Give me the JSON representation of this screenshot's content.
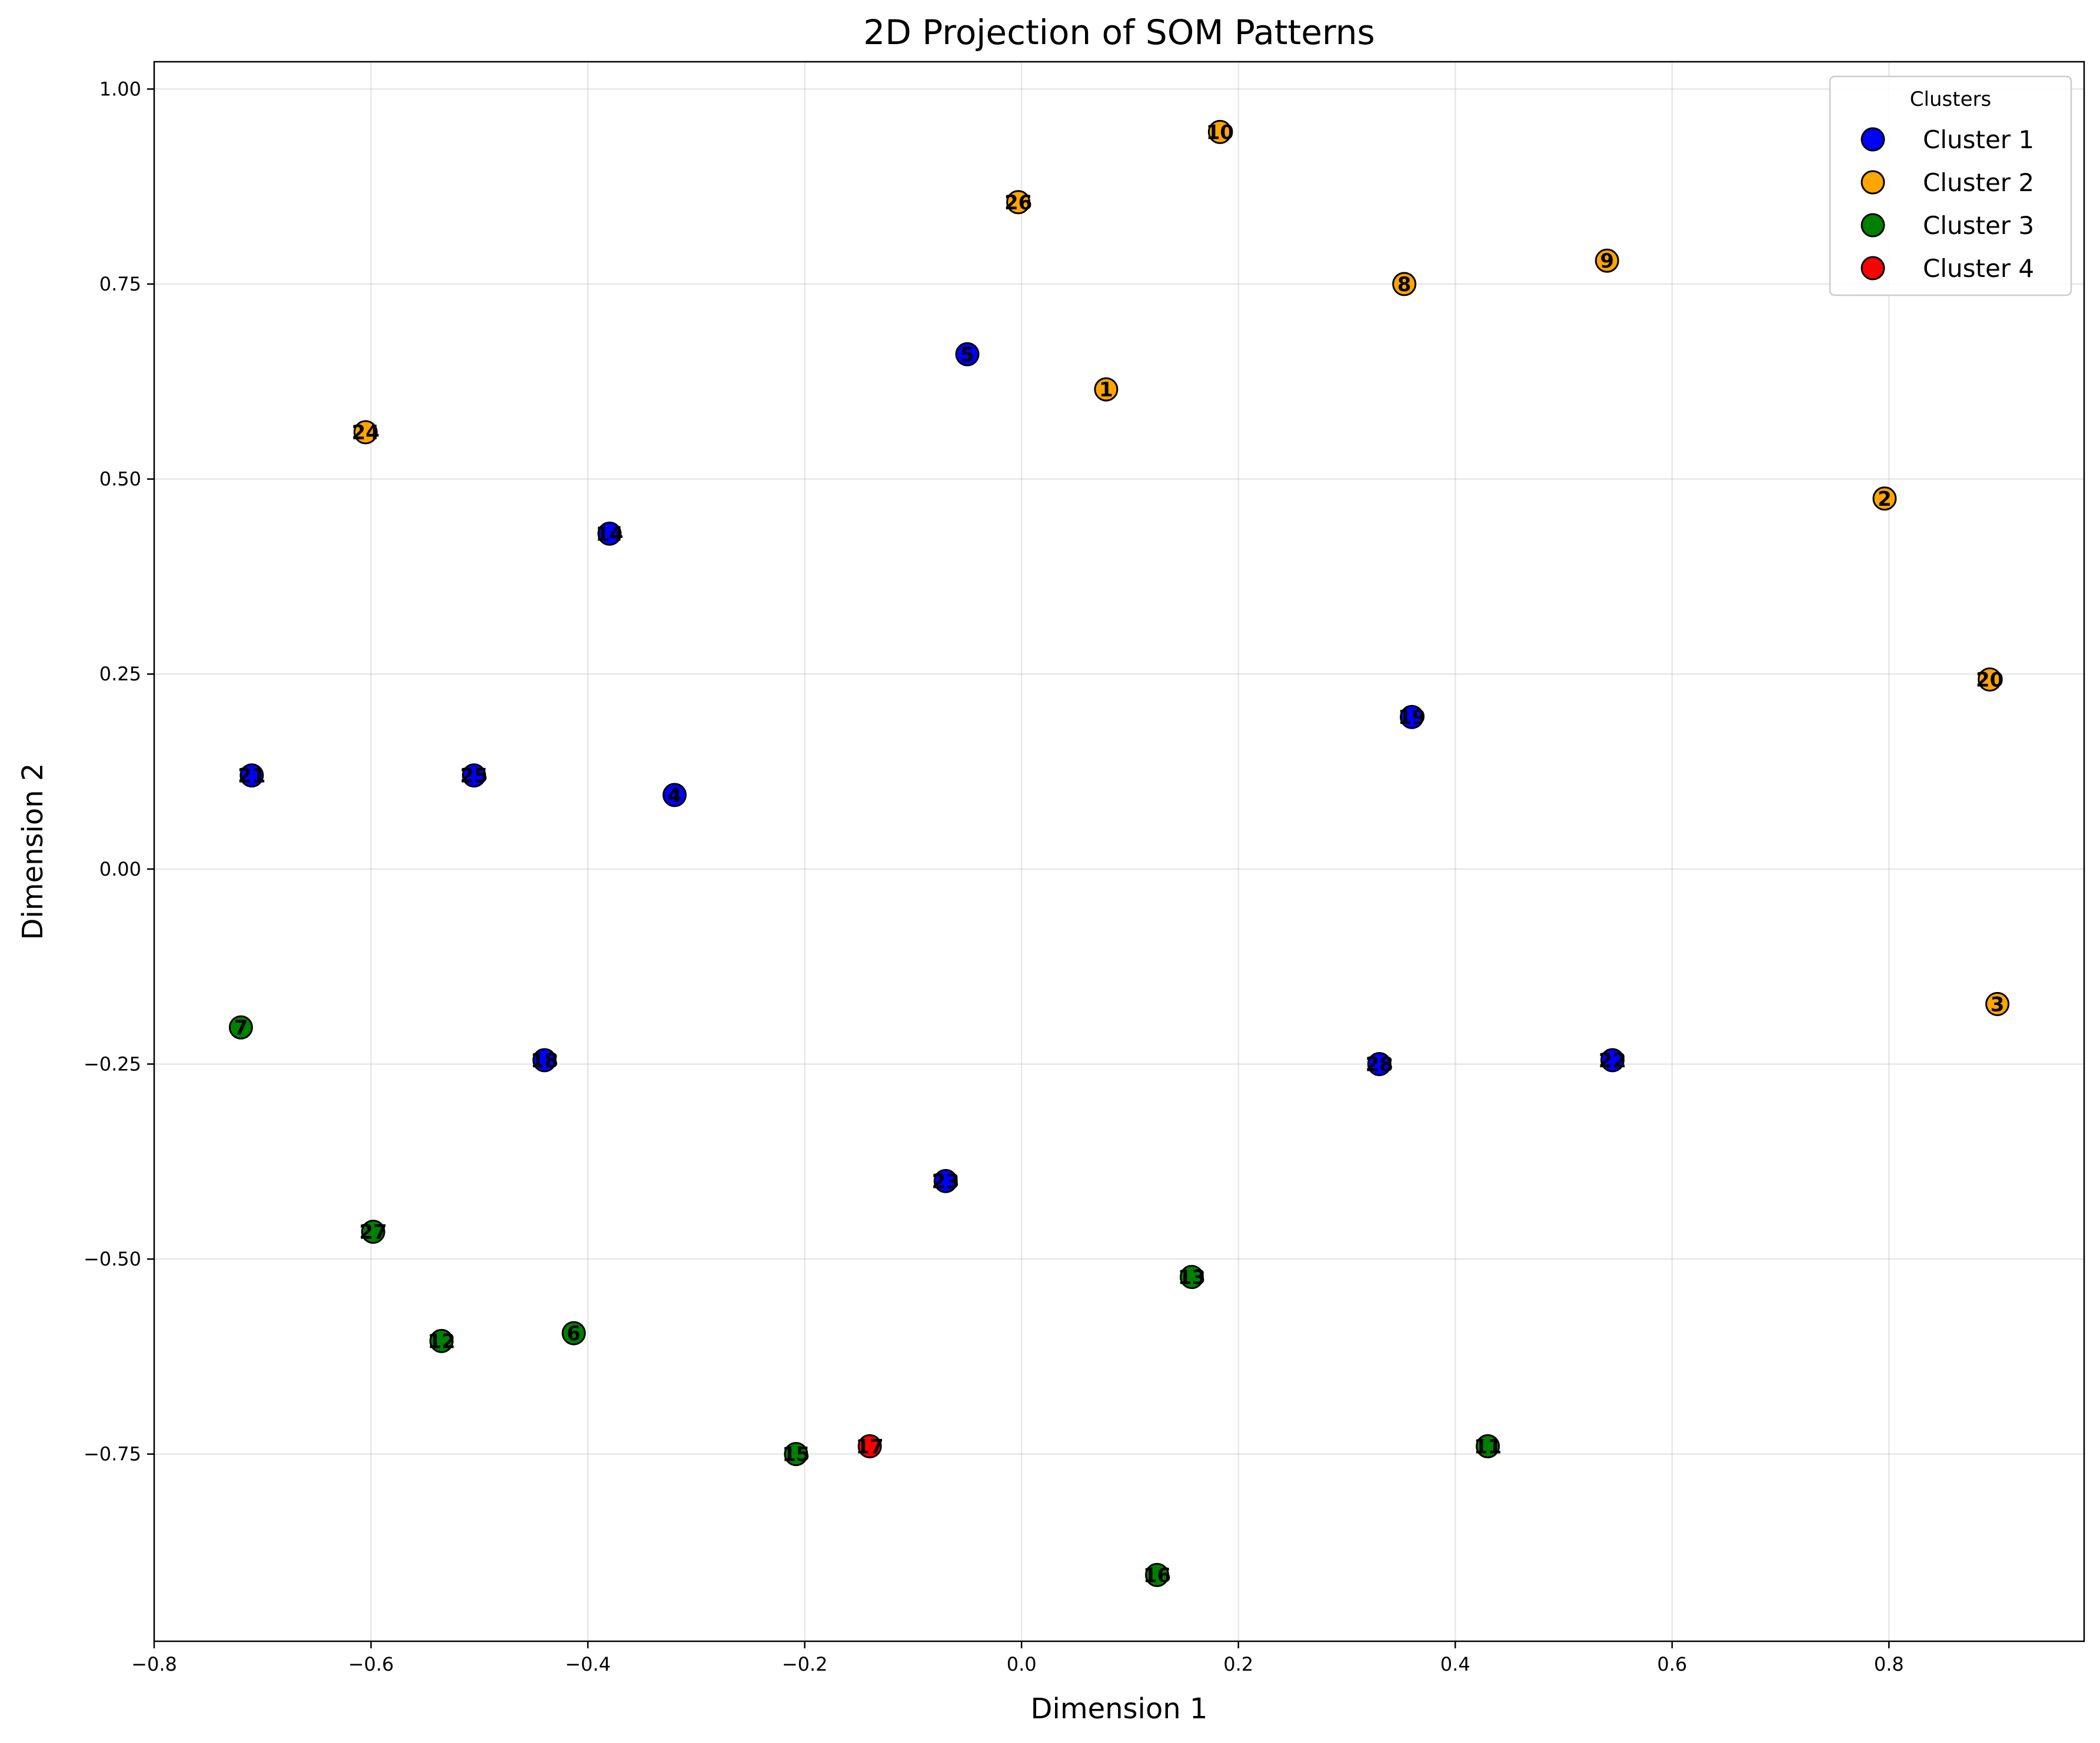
{
  "chart_data": {
    "type": "scatter",
    "title": "2D Projection of SOM Patterns",
    "xlabel": "Dimension 1",
    "ylabel": "Dimension 2",
    "xlim": [
      -0.8,
      0.98
    ],
    "ylim": [
      -0.99,
      1.035
    ],
    "grid": true,
    "xticks": [
      -0.8,
      -0.6,
      -0.4,
      -0.2,
      0.0,
      0.2,
      0.4,
      0.6,
      0.8
    ],
    "yticks": [
      1.0,
      0.75,
      0.5,
      0.25,
      0.0,
      -0.25,
      -0.5,
      -0.75
    ],
    "xtick_labels": [
      "−0.8",
      "−0.6",
      "−0.4",
      "−0.2",
      "0.0",
      "0.2",
      "0.4",
      "0.6",
      "0.8"
    ],
    "ytick_labels": [
      "1.00",
      "0.75",
      "0.50",
      "0.25",
      "0.00",
      "−0.25",
      "−0.50",
      "−0.75"
    ],
    "legend": {
      "title": "Clusters",
      "placement": "top-right",
      "entries": [
        "Cluster 1",
        "Cluster 2",
        "Cluster 3",
        "Cluster 4"
      ]
    },
    "series": [
      {
        "name": "Cluster 1",
        "color": "#0000ff",
        "points": [
          {
            "label": "5",
            "x": -0.05,
            "y": 0.66
          },
          {
            "label": "14",
            "x": -0.38,
            "y": 0.43
          },
          {
            "label": "21",
            "x": -0.71,
            "y": 0.12
          },
          {
            "label": "25",
            "x": -0.505,
            "y": 0.12
          },
          {
            "label": "4",
            "x": -0.32,
            "y": 0.095
          },
          {
            "label": "19",
            "x": 0.36,
            "y": 0.195
          },
          {
            "label": "18",
            "x": -0.44,
            "y": -0.245
          },
          {
            "label": "28",
            "x": 0.33,
            "y": -0.25
          },
          {
            "label": "22",
            "x": 0.545,
            "y": -0.245
          },
          {
            "label": "23",
            "x": -0.07,
            "y": -0.4
          }
        ]
      },
      {
        "name": "Cluster 2",
        "color": "#ffa500",
        "points": [
          {
            "label": "10",
            "x": 0.183,
            "y": 0.945
          },
          {
            "label": "26",
            "x": -0.003,
            "y": 0.855
          },
          {
            "label": "8",
            "x": 0.353,
            "y": 0.75
          },
          {
            "label": "9",
            "x": 0.54,
            "y": 0.78
          },
          {
            "label": "1",
            "x": 0.078,
            "y": 0.615
          },
          {
            "label": "24",
            "x": -0.605,
            "y": 0.56
          },
          {
            "label": "2",
            "x": 0.796,
            "y": 0.475
          },
          {
            "label": "20",
            "x": 0.893,
            "y": 0.243
          },
          {
            "label": "3",
            "x": 0.9,
            "y": -0.173
          }
        ]
      },
      {
        "name": "Cluster 3",
        "color": "#008000",
        "points": [
          {
            "label": "7",
            "x": -0.72,
            "y": -0.203
          },
          {
            "label": "27",
            "x": -0.598,
            "y": -0.465
          },
          {
            "label": "13",
            "x": 0.157,
            "y": -0.523
          },
          {
            "label": "12",
            "x": -0.535,
            "y": -0.605
          },
          {
            "label": "6",
            "x": -0.413,
            "y": -0.595
          },
          {
            "label": "15",
            "x": -0.208,
            "y": -0.75
          },
          {
            "label": "11",
            "x": 0.43,
            "y": -0.74
          },
          {
            "label": "16",
            "x": 0.125,
            "y": -0.905
          }
        ]
      },
      {
        "name": "Cluster 4",
        "color": "#ff0000",
        "points": [
          {
            "label": "17",
            "x": -0.14,
            "y": -0.74
          }
        ]
      }
    ]
  }
}
